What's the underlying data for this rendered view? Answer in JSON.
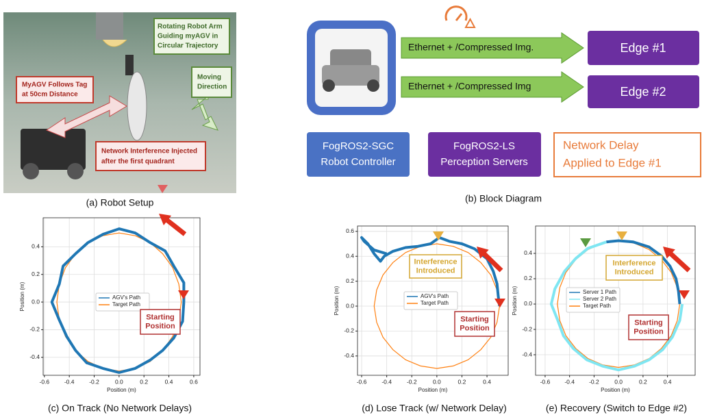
{
  "photo": {
    "callouts": [
      [
        "Rotating Robot Arm",
        "Guiding myAGV in",
        "Circular Trajectory"
      ],
      [
        "Moving",
        "Direction"
      ],
      [
        "MyAGV Follows Tag",
        "at 50cm Distance"
      ],
      [
        "Network Interference Injected",
        "after the first quadrant"
      ]
    ],
    "caption": "(a) Robot Setup"
  },
  "diagram": {
    "links": [
      "Ethernet + /Compressed Img.",
      "Ethernet + /Compressed Img"
    ],
    "edges": [
      "Edge #1",
      "Edge #2"
    ],
    "boxes": [
      [
        "FogROS2-SGC",
        "Robot Controller"
      ],
      [
        "FogROS2-LS",
        "Perception Servers"
      ],
      [
        "Network Delay",
        "Applied to Edge #1"
      ]
    ],
    "caption": "(b) Block Diagram"
  },
  "chart_data": [
    {
      "type": "line",
      "caption": "(c) On Track (No Network Delays)",
      "x_label": "Position (m)",
      "y_label": "Position (m)",
      "xlim": [
        -0.61,
        0.65
      ],
      "ylim": [
        -0.53,
        0.61
      ],
      "xticks": [
        -0.6,
        -0.4,
        -0.2,
        {
          "value": 0,
          "label": "0.0"
        },
        0.2,
        0.4,
        0.6
      ],
      "yticks": [
        -0.4,
        -0.2,
        {
          "value": 0,
          "label": "0.0"
        },
        0.2,
        0.4
      ],
      "grid": true,
      "legend": "center",
      "annotations": [
        [
          "Starting",
          "Position"
        ]
      ],
      "series": [
        {
          "name": "AGV's Path",
          "color": "#1f77b4",
          "x": [
            0.52,
            0.52,
            0.44,
            0.37,
            0.25,
            0.13,
            0.0,
            -0.13,
            -0.25,
            -0.35,
            -0.45,
            -0.48,
            -0.54,
            -0.48,
            -0.42,
            -0.35,
            -0.26,
            -0.13,
            0.0,
            0.13,
            0.25,
            0.35,
            0.44,
            0.51,
            0.52
          ],
          "values": [
            0.0,
            0.14,
            0.26,
            0.37,
            0.43,
            0.5,
            0.53,
            0.49,
            0.43,
            0.35,
            0.26,
            0.13,
            0.0,
            -0.13,
            -0.25,
            -0.35,
            -0.44,
            -0.48,
            -0.51,
            -0.48,
            -0.42,
            -0.35,
            -0.26,
            -0.14,
            0.0
          ]
        },
        {
          "name": "Target Path",
          "color": "#ff7f0e",
          "x": [
            0.5,
            0.48,
            0.43,
            0.35,
            0.25,
            0.13,
            0.0,
            -0.13,
            -0.25,
            -0.35,
            -0.43,
            -0.48,
            -0.5,
            -0.48,
            -0.43,
            -0.35,
            -0.25,
            -0.13,
            0.0,
            0.13,
            0.25,
            0.35,
            0.43,
            0.48,
            0.5
          ],
          "values": [
            0.0,
            0.13,
            0.25,
            0.35,
            0.43,
            0.48,
            0.5,
            0.48,
            0.43,
            0.35,
            0.25,
            0.13,
            0.0,
            -0.13,
            -0.25,
            -0.35,
            -0.43,
            -0.48,
            -0.5,
            -0.48,
            -0.43,
            -0.35,
            -0.25,
            -0.13,
            0.0
          ]
        }
      ]
    },
    {
      "type": "line",
      "caption": "(d) Lose Track (w/ Network Delay)",
      "x_label": "Position (m)",
      "y_label": "Position (m)",
      "xlim": [
        -0.633,
        0.569
      ],
      "ylim": [
        -0.555,
        0.643
      ],
      "xticks": [
        -0.6,
        -0.4,
        -0.2,
        {
          "value": 0,
          "label": "0.0"
        },
        0.2,
        0.4
      ],
      "yticks": [
        -0.4,
        -0.2,
        {
          "value": 0,
          "label": "0.0"
        },
        0.2,
        0.4,
        0.6
      ],
      "grid": true,
      "legend": "center",
      "annotations": [
        [
          "Interference",
          "Introduced"
        ],
        [
          "Starting",
          "Position"
        ]
      ],
      "series": [
        {
          "name": "AGV's Path",
          "color": "#1f77b4",
          "x": [
            0.5,
            0.49,
            0.48,
            0.45,
            0.4,
            0.3,
            0.2,
            0.1,
            0.02,
            -0.05,
            -0.15,
            -0.25,
            -0.35,
            -0.42,
            -0.45,
            -0.5,
            -0.55,
            -0.6,
            -0.58,
            -0.5,
            -0.4
          ],
          "values": [
            0.0,
            0.08,
            0.18,
            0.28,
            0.38,
            0.46,
            0.5,
            0.52,
            0.55,
            0.5,
            0.48,
            0.47,
            0.44,
            0.4,
            0.36,
            0.42,
            0.5,
            0.55,
            0.52,
            0.45,
            0.42
          ]
        },
        {
          "name": "Target Path",
          "color": "#ff7f0e",
          "x": [
            0.5,
            0.48,
            0.43,
            0.35,
            0.25,
            0.13,
            0.0,
            -0.13,
            -0.25,
            -0.35,
            -0.43,
            -0.48,
            -0.5,
            -0.48,
            -0.43,
            -0.35,
            -0.25,
            -0.13,
            0.0,
            0.13,
            0.25,
            0.35,
            0.43,
            0.48,
            0.5
          ],
          "values": [
            0.0,
            0.13,
            0.25,
            0.35,
            0.43,
            0.48,
            0.5,
            0.48,
            0.43,
            0.35,
            0.25,
            0.13,
            0.0,
            -0.13,
            -0.25,
            -0.35,
            -0.43,
            -0.48,
            -0.5,
            -0.48,
            -0.43,
            -0.35,
            -0.25,
            -0.13,
            0.0
          ]
        }
      ]
    },
    {
      "type": "line",
      "caption": "(e) Recovery (Switch to Edge #2)",
      "x_label": "Position (m)",
      "y_label": "Position (m)",
      "xlim": [
        -0.678,
        0.626
      ],
      "ylim": [
        -0.562,
        0.616
      ],
      "xticks": [
        -0.6,
        -0.4,
        -0.2,
        {
          "value": 0,
          "label": "0.0"
        },
        0.2,
        0.4
      ],
      "yticks": [
        -0.4,
        -0.2,
        {
          "value": 0,
          "label": "0.0"
        },
        0.2,
        0.4
      ],
      "grid": true,
      "legend": "center left",
      "annotations": [
        [
          "Interference",
          "Introduced"
        ],
        [
          "Starting",
          "Position"
        ]
      ],
      "series": [
        {
          "name": "Server 1 Path",
          "color": "#1f77b4",
          "x": [
            0.5,
            0.49,
            0.47,
            0.42,
            0.35,
            0.25,
            0.12,
            0.0,
            -0.1
          ],
          "values": [
            0.0,
            0.1,
            0.2,
            0.3,
            0.38,
            0.45,
            0.49,
            0.5,
            0.49
          ]
        },
        {
          "name": "Server 2 Path",
          "color": "#7fe6f2",
          "x": [
            -0.1,
            -0.25,
            -0.35,
            -0.44,
            -0.52,
            -0.55,
            -0.5,
            -0.45,
            -0.37,
            -0.26,
            -0.13,
            0.0,
            0.13,
            0.25,
            0.36,
            0.44,
            0.5,
            0.52
          ],
          "values": [
            0.49,
            0.44,
            0.36,
            0.26,
            0.12,
            0.0,
            -0.12,
            -0.25,
            -0.35,
            -0.44,
            -0.49,
            -0.52,
            -0.49,
            -0.44,
            -0.36,
            -0.26,
            -0.13,
            0.0
          ]
        },
        {
          "name": "Target Path",
          "color": "#ff7f0e",
          "x": [
            0.5,
            0.48,
            0.43,
            0.35,
            0.25,
            0.13,
            0.0,
            -0.13,
            -0.25,
            -0.35,
            -0.43,
            -0.48,
            -0.5,
            -0.48,
            -0.43,
            -0.35,
            -0.25,
            -0.13,
            0.0,
            0.13,
            0.25,
            0.35,
            0.43,
            0.48,
            0.5
          ],
          "values": [
            0.0,
            0.13,
            0.25,
            0.35,
            0.43,
            0.48,
            0.5,
            0.48,
            0.43,
            0.35,
            0.25,
            0.13,
            0.0,
            -0.13,
            -0.25,
            -0.35,
            -0.43,
            -0.48,
            -0.5,
            -0.48,
            -0.43,
            -0.35,
            -0.25,
            -0.13,
            0.0
          ]
        }
      ]
    }
  ]
}
